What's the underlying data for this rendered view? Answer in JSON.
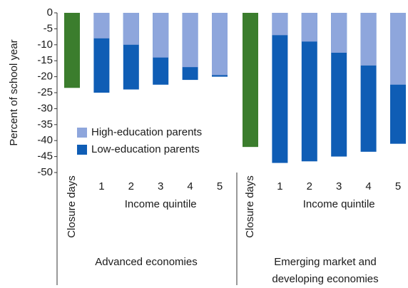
{
  "chart_data": {
    "type": "bar",
    "ylabel": "Percent of school year",
    "ylim": [
      -50,
      0
    ],
    "yticks": [
      0,
      -5,
      -10,
      -15,
      -20,
      -25,
      -30,
      -35,
      -40,
      -45,
      -50
    ],
    "xlabel": "Income quintile",
    "closure_label": "Closure days",
    "closure_color": "#3b7d2d",
    "closure_days": [
      -23.5,
      -42
    ],
    "groups": [
      "Advanced economies",
      "Emerging market and developing economies"
    ],
    "categories": [
      "1",
      "2",
      "3",
      "4",
      "5"
    ],
    "series": [
      {
        "name": "High-education parents",
        "color": "#8ea6dc",
        "values": [
          [
            -8,
            -10,
            -14,
            -17,
            -19.5
          ],
          [
            -7,
            -9,
            -12.5,
            -16.5,
            -22.5
          ]
        ]
      },
      {
        "name": "Low-education parents",
        "color": "#0f5db5",
        "values": [
          [
            -25,
            -24,
            -22.5,
            -21,
            -20
          ],
          [
            -47,
            -46.5,
            -45,
            -43.5,
            -41
          ]
        ]
      }
    ]
  }
}
